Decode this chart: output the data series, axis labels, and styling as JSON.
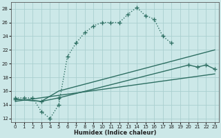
{
  "bg_color": "#cce8e8",
  "grid_color": "#aacfcf",
  "line_color": "#2d6e62",
  "marker": "+",
  "markersize": 4,
  "linewidth": 1.0,
  "xlabel": "Humidex (Indice chaleur)",
  "xlim": [
    -0.5,
    23.5
  ],
  "ylim": [
    11.5,
    29
  ],
  "yticks": [
    12,
    14,
    16,
    18,
    20,
    22,
    24,
    26,
    28
  ],
  "xticks": [
    0,
    1,
    2,
    3,
    4,
    5,
    6,
    7,
    8,
    9,
    10,
    11,
    12,
    13,
    14,
    15,
    16,
    17,
    18,
    19,
    20,
    21,
    22,
    23
  ],
  "line1_x": [
    0,
    1,
    2,
    3,
    4,
    5,
    6,
    7,
    8,
    9,
    10,
    11,
    12,
    13,
    14,
    15,
    16,
    17,
    18
  ],
  "line1_y": [
    15,
    15,
    15,
    13,
    12,
    14,
    21,
    23,
    24.5,
    25.5,
    26,
    26,
    26,
    27.2,
    28.2,
    27,
    26.5,
    24,
    23
  ],
  "line2_x": [
    0,
    3,
    5,
    23
  ],
  "line2_y": [
    14.8,
    14.5,
    16,
    22
  ],
  "line3_x": [
    0,
    3,
    5,
    20,
    21,
    22,
    23
  ],
  "line3_y": [
    14.8,
    14.5,
    15,
    19.8,
    19.5,
    19.8,
    19.2
  ],
  "line4_x": [
    0,
    23
  ],
  "line4_y": [
    14.5,
    18.5
  ]
}
